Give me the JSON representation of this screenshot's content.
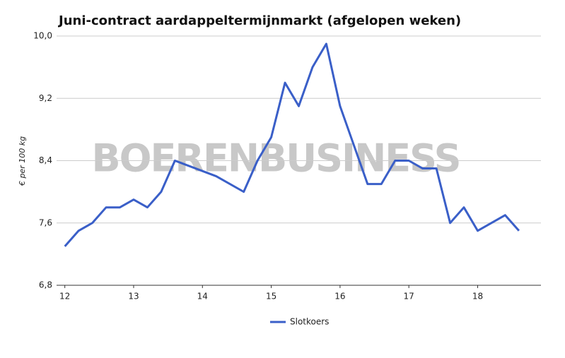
{
  "chart_data": {
    "type": "line",
    "title": "Juni-contract aardappeltermijnmarkt (afgelopen weken)",
    "watermark": "BOERENBUSINESS",
    "y_label": "€ per 100 kg",
    "x": [
      12,
      12.2,
      12.4,
      12.6,
      12.8,
      13,
      13.2,
      13.4,
      13.6,
      14.2,
      14.6,
      14.8,
      15,
      15.2,
      15.4,
      15.6,
      15.8,
      16,
      16.2,
      16.4,
      16.6,
      16.8,
      17,
      17.2,
      17.4,
      17.6,
      17.8,
      18,
      18.4,
      18.6
    ],
    "series": [
      {
        "name": "Slotkoers",
        "color": "#3a5fc8",
        "values": [
          7.3,
          7.5,
          7.6,
          7.8,
          7.8,
          7.9,
          7.8,
          8.0,
          8.4,
          8.2,
          8.0,
          8.4,
          8.7,
          9.4,
          9.1,
          9.6,
          9.9,
          9.1,
          8.6,
          8.1,
          8.1,
          8.4,
          8.4,
          8.3,
          8.3,
          7.6,
          7.8,
          7.5,
          7.7,
          7.5
        ]
      }
    ],
    "xlim": [
      11.88,
      18.92
    ],
    "xticks": [
      12,
      13,
      14,
      15,
      16,
      17,
      18
    ],
    "ylim": [
      6.8,
      10.0
    ],
    "yticks": [
      {
        "value": 6.8,
        "label": "6,8"
      },
      {
        "value": 7.6,
        "label": "7,6"
      },
      {
        "value": 8.4,
        "label": "8,4"
      },
      {
        "value": 9.2,
        "label": "9,2"
      },
      {
        "value": 10.0,
        "label": "10,0"
      }
    ],
    "grid": true,
    "legend": "bottom"
  }
}
